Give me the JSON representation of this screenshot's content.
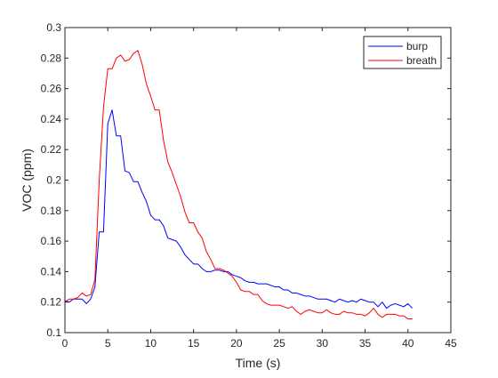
{
  "chart_data": {
    "type": "line",
    "title": "",
    "xlabel": "Time (s)",
    "ylabel": "VOC (ppm)",
    "xlim": [
      0,
      45
    ],
    "ylim": [
      0.1,
      0.3
    ],
    "xticks": [
      0,
      5,
      10,
      15,
      20,
      25,
      30,
      35,
      40,
      45
    ],
    "yticks": [
      0.1,
      0.12,
      0.14,
      0.16,
      0.18,
      0.2,
      0.22,
      0.24,
      0.26,
      0.28,
      0.3
    ],
    "grid": false,
    "legend_position": "top-right",
    "series": [
      {
        "name": "burp",
        "color": "#0000ff",
        "x": [
          0,
          0.5,
          1,
          1.5,
          2,
          2.5,
          3,
          3.5,
          4,
          4.5,
          5,
          5.5,
          6,
          6.5,
          7,
          7.5,
          8,
          8.5,
          9,
          9.5,
          10,
          10.5,
          11,
          11.5,
          12,
          12.5,
          13,
          13.5,
          14,
          14.5,
          15,
          15.5,
          16,
          16.5,
          17,
          17.5,
          18,
          18.5,
          19,
          19.5,
          20,
          20.5,
          21,
          21.5,
          22,
          22.5,
          23,
          23.5,
          24,
          24.5,
          25,
          25.5,
          26,
          26.5,
          27,
          27.5,
          28,
          28.5,
          29,
          29.5,
          30,
          30.5,
          31,
          31.5,
          32,
          32.5,
          33,
          33.5,
          34,
          34.5,
          35,
          35.5,
          36,
          36.5,
          37,
          37.5,
          38,
          38.5,
          39,
          39.5,
          40,
          40.5
        ],
        "y": [
          0.121,
          0.12,
          0.122,
          0.122,
          0.122,
          0.119,
          0.122,
          0.13,
          0.166,
          0.166,
          0.237,
          0.246,
          0.229,
          0.229,
          0.206,
          0.205,
          0.199,
          0.199,
          0.192,
          0.186,
          0.177,
          0.174,
          0.174,
          0.17,
          0.162,
          0.161,
          0.16,
          0.156,
          0.151,
          0.148,
          0.145,
          0.145,
          0.142,
          0.14,
          0.14,
          0.141,
          0.141,
          0.14,
          0.14,
          0.138,
          0.137,
          0.136,
          0.134,
          0.133,
          0.133,
          0.132,
          0.132,
          0.132,
          0.131,
          0.13,
          0.13,
          0.128,
          0.128,
          0.126,
          0.126,
          0.125,
          0.124,
          0.124,
          0.123,
          0.122,
          0.122,
          0.122,
          0.121,
          0.12,
          0.122,
          0.121,
          0.12,
          0.121,
          0.12,
          0.122,
          0.121,
          0.12,
          0.12,
          0.117,
          0.12,
          0.116,
          0.118,
          0.119,
          0.118,
          0.117,
          0.119,
          0.116
        ]
      },
      {
        "name": "breath",
        "color": "#ff0000",
        "x": [
          0,
          0.5,
          1,
          1.5,
          2,
          2.5,
          3,
          3.5,
          4,
          4.5,
          5,
          5.5,
          6,
          6.5,
          7,
          7.5,
          8,
          8.5,
          9,
          9.5,
          10,
          10.5,
          11,
          11.5,
          12,
          12.5,
          13,
          13.5,
          14,
          14.5,
          15,
          15.5,
          16,
          16.5,
          17,
          17.5,
          18,
          18.5,
          19,
          19.5,
          20,
          20.5,
          21,
          21.5,
          22,
          22.5,
          23,
          23.5,
          24,
          24.5,
          25,
          25.5,
          26,
          26.5,
          27,
          27.5,
          28,
          28.5,
          29,
          29.5,
          30,
          30.5,
          31,
          31.5,
          32,
          32.5,
          33,
          33.5,
          34,
          34.5,
          35,
          35.5,
          36,
          36.5,
          37,
          37.5,
          38,
          38.5,
          39,
          39.5,
          40,
          40.5
        ],
        "y": [
          0.12,
          0.122,
          0.122,
          0.123,
          0.126,
          0.124,
          0.125,
          0.135,
          0.2,
          0.248,
          0.273,
          0.273,
          0.28,
          0.282,
          0.278,
          0.279,
          0.283,
          0.285,
          0.276,
          0.263,
          0.255,
          0.246,
          0.246,
          0.226,
          0.212,
          0.205,
          0.197,
          0.189,
          0.179,
          0.172,
          0.172,
          0.166,
          0.162,
          0.153,
          0.148,
          0.142,
          0.142,
          0.141,
          0.139,
          0.137,
          0.133,
          0.128,
          0.127,
          0.127,
          0.125,
          0.125,
          0.121,
          0.119,
          0.118,
          0.118,
          0.118,
          0.117,
          0.116,
          0.117,
          0.114,
          0.112,
          0.114,
          0.115,
          0.114,
          0.113,
          0.113,
          0.115,
          0.113,
          0.112,
          0.112,
          0.114,
          0.113,
          0.113,
          0.112,
          0.112,
          0.111,
          0.113,
          0.116,
          0.112,
          0.11,
          0.112,
          0.112,
          0.112,
          0.111,
          0.111,
          0.109,
          0.109
        ]
      }
    ]
  }
}
